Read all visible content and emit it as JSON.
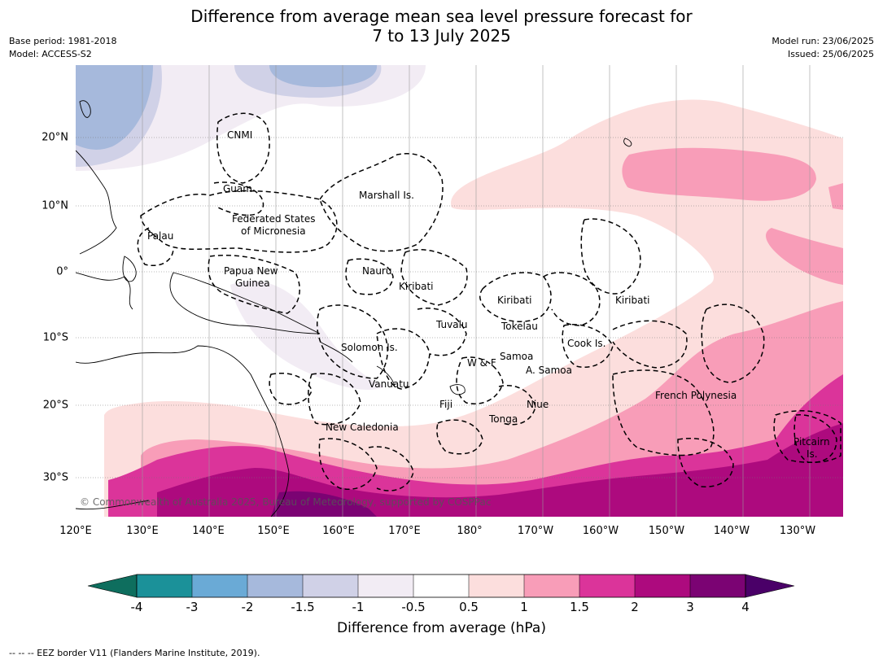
{
  "title": {
    "line1": "Difference from average mean sea level pressure forecast for",
    "line2": "7 to 13 July 2025"
  },
  "meta": {
    "base_period": "Base period: 1981-2018",
    "model": "Model: ACCESS-S2",
    "model_run": "Model run: 23/06/2025",
    "issued": "Issued: 25/06/2025"
  },
  "map": {
    "extent": {
      "lon_min": 120,
      "lon_max": 235,
      "lat_min": -36,
      "lat_max": 31
    },
    "lon_ticks": [
      "120°E",
      "130°E",
      "140°E",
      "150°E",
      "160°E",
      "170°E",
      "180°",
      "170°W",
      "160°W",
      "150°W",
      "140°W",
      "130°W"
    ],
    "lat_ticks": [
      "20°N",
      "10°N",
      "0°",
      "10°S",
      "20°S",
      "30°S"
    ],
    "region_labels": {
      "cnmi": "CNMI",
      "guam": "Guam",
      "marshall": "Marshall Is.",
      "fsm1": "Federated States",
      "fsm2": "of Micronesia",
      "palau": "Palau",
      "png1": "Papua New",
      "png2": "Guinea",
      "nauru": "Nauru",
      "kiribati_w": "Kiribati",
      "kiribati_c": "Kiribati",
      "kiribati_e": "Kiribati",
      "tuvalu": "Tuvalu",
      "tokelau": "Tokelau",
      "cook": "Cook Is.",
      "solomon": "Solomon Is.",
      "wf": "W & F",
      "samoa": "Samoa",
      "asamoa": "A. Samoa",
      "vanuatu": "Vanuatu",
      "fiji": "Fiji",
      "niue": "Niue",
      "tonga": "Tonga",
      "newcal": "New Caledonia",
      "frpoly": "French Polynesia",
      "pitcairn1": "Pitcairn",
      "pitcairn2": "Is."
    },
    "copyright": "© Commonwealth of Australia 2025, Bureau of Meteorology, supported by COSPPac"
  },
  "colorbar": {
    "ticks": [
      "-4",
      "-3",
      "-2",
      "-1.5",
      "-1",
      "-0.5",
      "0.5",
      "1",
      "1.5",
      "2",
      "3",
      "4"
    ],
    "colors": [
      "#0e6e5e",
      "#1b9199",
      "#6aaad6",
      "#a6b9dc",
      "#d0d1e7",
      "#f2ecf4",
      "#ffffff",
      "#fcdedd",
      "#f89db8",
      "#db349a",
      "#ad0a7e",
      "#7b0373",
      "#4a0068"
    ],
    "label": "Difference from average (hPa)"
  },
  "footnote": "--  --  -- EEZ border V11 (Flanders Marine Institute, 2019)."
}
